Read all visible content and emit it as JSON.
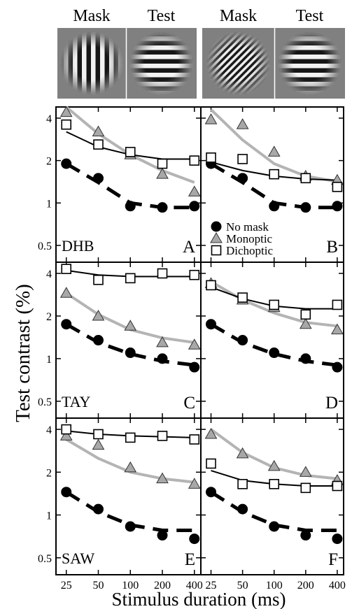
{
  "stimuli": [
    {
      "label": "Mask",
      "grating": "vertical"
    },
    {
      "label": "Test",
      "grating": "horizontal"
    },
    {
      "label": "Mask",
      "grating": "oblique"
    },
    {
      "label": "Test",
      "grating": "horizontal"
    }
  ],
  "ylabel": "Test contrast (%)",
  "xlabel": "Stimulus duration (ms)",
  "legend": [
    {
      "name": "No mask",
      "marker": "circle"
    },
    {
      "name": "Monoptic",
      "marker": "triangle"
    },
    {
      "name": "Dichoptic",
      "marker": "square"
    }
  ],
  "colors": {
    "no_mask": "#000000",
    "monoptic_marker": "#a8a8a8",
    "monoptic_fit": "#b4b4b4",
    "dichoptic_marker": "#ffffff"
  },
  "chart_data": {
    "type": "scatter",
    "x_scale": "log",
    "y_scale": "log",
    "x_ticks": [
      25,
      50,
      100,
      200,
      400
    ],
    "y_ticks": [
      0.5,
      1,
      2,
      4
    ],
    "xlim": [
      20,
      460
    ],
    "ylim": [
      0.38,
      4.8
    ],
    "legend_position": "bottom-left",
    "panels": [
      {
        "observer": "DHB",
        "letter": "A",
        "series": [
          {
            "name": "No mask",
            "x": [
              25,
              50,
              100,
              200,
              400
            ],
            "y": [
              1.9,
              1.5,
              0.95,
              0.93,
              0.95
            ]
          },
          {
            "name": "Monoptic",
            "x": [
              25,
              50,
              100,
              200,
              400
            ],
            "y": [
              4.4,
              3.2,
              2.2,
              1.6,
              1.2
            ]
          },
          {
            "name": "Dichoptic",
            "x": [
              25,
              50,
              100,
              200,
              400
            ],
            "y": [
              3.6,
              2.6,
              2.3,
              1.9,
              2.0
            ]
          }
        ],
        "fits": {
          "No mask": [
            [
              25,
              1.9
            ],
            [
              50,
              1.4
            ],
            [
              100,
              1.0
            ],
            [
              200,
              0.93
            ],
            [
              400,
              0.93
            ]
          ],
          "Monoptic": [
            [
              25,
              4.8
            ],
            [
              50,
              3.1
            ],
            [
              100,
              2.2
            ],
            [
              200,
              1.7
            ],
            [
              400,
              1.4
            ]
          ],
          "Dichoptic": [
            [
              25,
              3.2
            ],
            [
              50,
              2.5
            ],
            [
              100,
              2.2
            ],
            [
              200,
              2.05
            ],
            [
              400,
              2.05
            ]
          ]
        }
      },
      {
        "observer": "",
        "letter": "B",
        "series": [
          {
            "name": "No mask",
            "x": [
              25,
              50,
              100,
              200,
              400
            ],
            "y": [
              1.9,
              1.5,
              0.95,
              0.93,
              0.95
            ]
          },
          {
            "name": "Monoptic",
            "x": [
              25,
              50,
              100,
              200,
              400
            ],
            "y": [
              3.9,
              3.6,
              2.3,
              1.55,
              1.45
            ]
          },
          {
            "name": "Dichoptic",
            "x": [
              25,
              50,
              100,
              200,
              400
            ],
            "y": [
              2.1,
              2.05,
              1.6,
              1.5,
              1.3
            ]
          }
        ],
        "fits": {
          "No mask": [
            [
              25,
              1.9
            ],
            [
              50,
              1.4
            ],
            [
              100,
              1.0
            ],
            [
              200,
              0.93
            ],
            [
              400,
              0.93
            ]
          ],
          "Monoptic": [
            [
              25,
              4.6
            ],
            [
              50,
              2.8
            ],
            [
              100,
              1.9
            ],
            [
              200,
              1.55
            ],
            [
              400,
              1.42
            ]
          ],
          "Dichoptic": [
            [
              25,
              1.95
            ],
            [
              50,
              1.7
            ],
            [
              100,
              1.55
            ],
            [
              200,
              1.48
            ],
            [
              400,
              1.45
            ]
          ]
        }
      },
      {
        "observer": "TAY",
        "letter": "C",
        "series": [
          {
            "name": "No mask",
            "x": [
              25,
              50,
              100,
              200,
              400
            ],
            "y": [
              1.75,
              1.35,
              1.1,
              1.0,
              0.87
            ]
          },
          {
            "name": "Monoptic",
            "x": [
              25,
              50,
              100,
              200,
              400
            ],
            "y": [
              2.9,
              2.0,
              1.7,
              1.3,
              1.25
            ]
          },
          {
            "name": "Dichoptic",
            "x": [
              25,
              50,
              100,
              200,
              400
            ],
            "y": [
              4.3,
              3.6,
              3.7,
              4.0,
              3.9
            ]
          }
        ],
        "fits": {
          "No mask": [
            [
              25,
              1.75
            ],
            [
              50,
              1.3
            ],
            [
              100,
              1.08
            ],
            [
              200,
              0.96
            ],
            [
              400,
              0.9
            ]
          ],
          "Monoptic": [
            [
              25,
              2.9
            ],
            [
              50,
              2.05
            ],
            [
              100,
              1.6
            ],
            [
              200,
              1.4
            ],
            [
              400,
              1.3
            ]
          ],
          "Dichoptic": [
            [
              25,
              4.2
            ],
            [
              50,
              3.9
            ],
            [
              100,
              3.8
            ],
            [
              200,
              3.8
            ],
            [
              400,
              3.8
            ]
          ]
        }
      },
      {
        "observer": "",
        "letter": "D",
        "series": [
          {
            "name": "No mask",
            "x": [
              25,
              50,
              100,
              200,
              400
            ],
            "y": [
              1.75,
              1.35,
              1.1,
              1.0,
              0.87
            ]
          },
          {
            "name": "Monoptic",
            "x": [
              25,
              50,
              100,
              200,
              400
            ],
            "y": [
              3.4,
              2.6,
              2.3,
              1.75,
              1.6
            ]
          },
          {
            "name": "Dichoptic",
            "x": [
              25,
              50,
              100,
              200,
              400
            ],
            "y": [
              3.3,
              2.7,
              2.4,
              2.05,
              2.4
            ]
          }
        ],
        "fits": {
          "No mask": [
            [
              25,
              1.75
            ],
            [
              50,
              1.3
            ],
            [
              100,
              1.08
            ],
            [
              200,
              0.96
            ],
            [
              400,
              0.9
            ]
          ],
          "Monoptic": [
            [
              25,
              3.5
            ],
            [
              50,
              2.6
            ],
            [
              100,
              2.1
            ],
            [
              200,
              1.8
            ],
            [
              400,
              1.7
            ]
          ],
          "Dichoptic": [
            [
              25,
              3.2
            ],
            [
              50,
              2.65
            ],
            [
              100,
              2.35
            ],
            [
              200,
              2.25
            ],
            [
              400,
              2.25
            ]
          ]
        }
      },
      {
        "observer": "SAW",
        "letter": "E",
        "series": [
          {
            "name": "No mask",
            "x": [
              25,
              50,
              100,
              200,
              400
            ],
            "y": [
              1.45,
              1.1,
              0.83,
              0.72,
              0.68
            ]
          },
          {
            "name": "Monoptic",
            "x": [
              25,
              50,
              100,
              200,
              400
            ],
            "y": [
              3.6,
              3.1,
              2.15,
              1.8,
              1.65
            ]
          },
          {
            "name": "Dichoptic",
            "x": [
              25,
              50,
              100,
              200,
              400
            ],
            "y": [
              4.0,
              3.7,
              3.5,
              3.6,
              3.4
            ]
          }
        ],
        "fits": {
          "No mask": [
            [
              25,
              1.45
            ],
            [
              50,
              1.05
            ],
            [
              100,
              0.85
            ],
            [
              200,
              0.78
            ],
            [
              400,
              0.78
            ]
          ],
          "Monoptic": [
            [
              25,
              3.4
            ],
            [
              50,
              2.5
            ],
            [
              100,
              2.0
            ],
            [
              200,
              1.8
            ],
            [
              400,
              1.7
            ]
          ],
          "Dichoptic": [
            [
              25,
              3.9
            ],
            [
              50,
              3.7
            ],
            [
              100,
              3.6
            ],
            [
              200,
              3.55
            ],
            [
              400,
              3.5
            ]
          ]
        }
      },
      {
        "observer": "",
        "letter": "F",
        "series": [
          {
            "name": "No mask",
            "x": [
              25,
              50,
              100,
              200,
              400
            ],
            "y": [
              1.45,
              1.1,
              0.83,
              0.72,
              0.68
            ]
          },
          {
            "name": "Monoptic",
            "x": [
              25,
              50,
              100,
              200,
              400
            ],
            "y": [
              3.7,
              2.7,
              2.2,
              2.0,
              1.75
            ]
          },
          {
            "name": "Dichoptic",
            "x": [
              25,
              50,
              100,
              200,
              400
            ],
            "y": [
              2.3,
              1.65,
              1.65,
              1.55,
              1.6
            ]
          }
        ],
        "fits": {
          "No mask": [
            [
              25,
              1.45
            ],
            [
              50,
              1.05
            ],
            [
              100,
              0.85
            ],
            [
              200,
              0.78
            ],
            [
              400,
              0.78
            ]
          ],
          "Monoptic": [
            [
              25,
              4.0
            ],
            [
              50,
              2.75
            ],
            [
              100,
              2.15
            ],
            [
              200,
              1.9
            ],
            [
              400,
              1.8
            ]
          ],
          "Dichoptic": [
            [
              25,
              2.05
            ],
            [
              50,
              1.75
            ],
            [
              100,
              1.65
            ],
            [
              200,
              1.6
            ],
            [
              400,
              1.6
            ]
          ]
        }
      }
    ]
  }
}
